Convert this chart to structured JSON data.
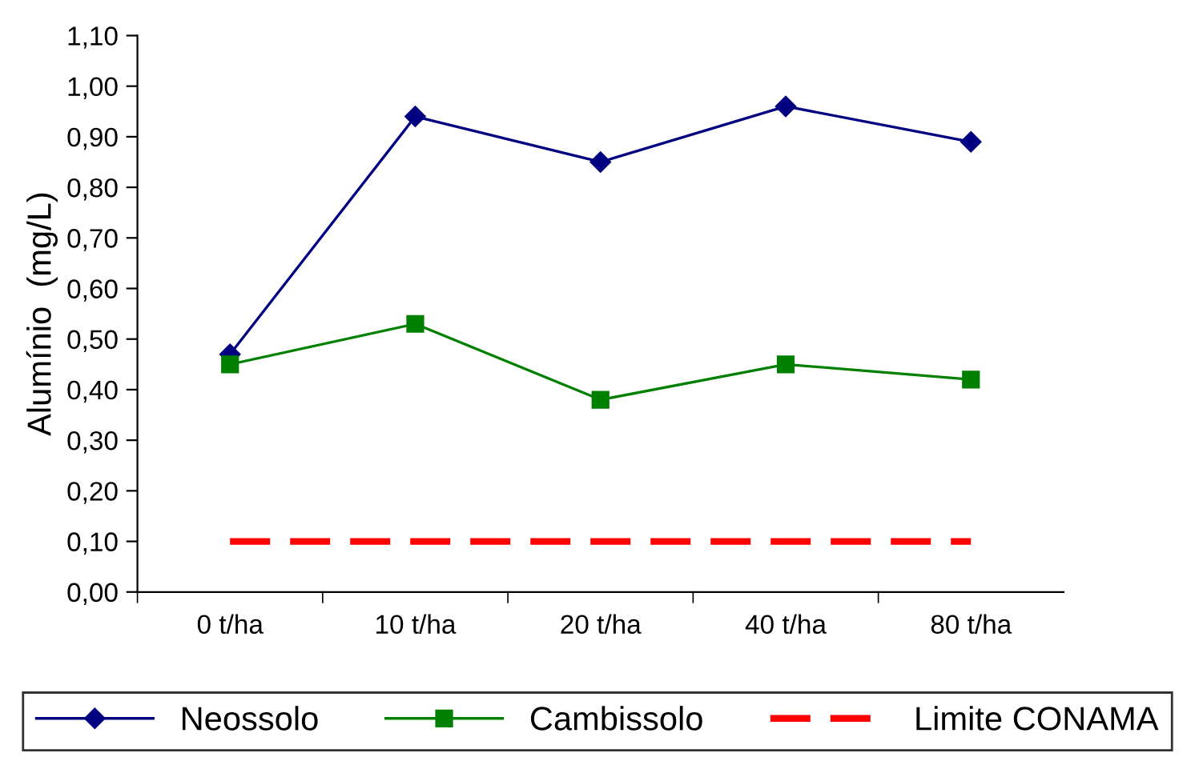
{
  "chart_data": {
    "type": "line",
    "ylabel": "Alumínio  (mg/L)",
    "categories": [
      "0 t/ha",
      "10 t/ha",
      "20 t/ha",
      "40 t/ha",
      "80 t/ha"
    ],
    "series": [
      {
        "name": "Neossolo",
        "color": "#000080",
        "marker": "diamond",
        "line_style": "solid",
        "values": [
          0.47,
          0.94,
          0.85,
          0.96,
          0.89
        ]
      },
      {
        "name": "Cambissolo",
        "color": "#008000",
        "marker": "square",
        "line_style": "solid",
        "values": [
          0.45,
          0.53,
          0.38,
          0.45,
          0.42
        ]
      },
      {
        "name": "Limite CONAMA",
        "color": "#ff0000",
        "marker": "none",
        "line_style": "dashed",
        "values": [
          0.1,
          0.1,
          0.1,
          0.1,
          0.1
        ]
      }
    ],
    "ylim": [
      0,
      1.1
    ],
    "yticks": [
      {
        "value": 0,
        "label": "0,00"
      },
      {
        "value": 0.1,
        "label": "0,10"
      },
      {
        "value": 0.2,
        "label": "0,20"
      },
      {
        "value": 0.3,
        "label": "0,30"
      },
      {
        "value": 0.4,
        "label": "0,40"
      },
      {
        "value": 0.5,
        "label": "0,50"
      },
      {
        "value": 0.6,
        "label": "0,60"
      },
      {
        "value": 0.7,
        "label": "0,70"
      },
      {
        "value": 0.8,
        "label": "0,80"
      },
      {
        "value": 0.9,
        "label": "0,90"
      },
      {
        "value": 1.0,
        "label": "1,00"
      },
      {
        "value": 1.1,
        "label": "1,10"
      }
    ],
    "grid": false,
    "legend": "bottom"
  }
}
